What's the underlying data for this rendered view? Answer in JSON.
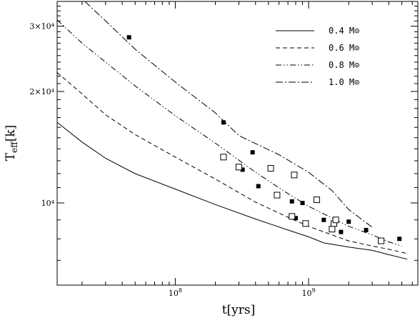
{
  "chart_data": {
    "type": "line",
    "title": "",
    "xlabel": "t[yrs]",
    "ylabel": "T_eff[k]",
    "x_scale": "log",
    "y_scale": "log",
    "xlim": [
      13000000.0,
      6600000000.0
    ],
    "ylim": [
      6000,
      35000
    ],
    "x_ticks": [
      {
        "value": 100000000.0,
        "base": "10",
        "exp": "8"
      },
      {
        "value": 1000000000.0,
        "base": "10",
        "exp": "9"
      }
    ],
    "y_ticks": [
      {
        "value": 10000,
        "label": "10⁴"
      },
      {
        "value": 20000,
        "label": "2×10⁴"
      },
      {
        "value": 30000,
        "label": "3×10⁴"
      }
    ],
    "legend_position": "top-right",
    "series": [
      {
        "name": "0.4 M⊙",
        "style": "solid",
        "points": [
          [
            13000000.0,
            16500
          ],
          [
            20000000.0,
            14600
          ],
          [
            30000000.0,
            13200
          ],
          [
            50000000.0,
            12000
          ],
          [
            100000000.0,
            10900
          ],
          [
            200000000.0,
            9900
          ],
          [
            400000000.0,
            9050
          ],
          [
            700000000.0,
            8450
          ],
          [
            1000000000.0,
            8100
          ],
          [
            1300000000.0,
            7800
          ],
          [
            2000000000.0,
            7600
          ],
          [
            3000000000.0,
            7450
          ],
          [
            4000000000.0,
            7250
          ],
          [
            5500000000.0,
            7050
          ]
        ]
      },
      {
        "name": "0.6 M⊙",
        "style": "dashed",
        "points": [
          [
            13000000.0,
            22500
          ],
          [
            20000000.0,
            19700
          ],
          [
            30000000.0,
            17300
          ],
          [
            50000000.0,
            15300
          ],
          [
            100000000.0,
            13300
          ],
          [
            200000000.0,
            11600
          ],
          [
            400000000.0,
            10050
          ],
          [
            700000000.0,
            9150
          ],
          [
            1000000000.0,
            8650
          ],
          [
            1500000000.0,
            8200
          ],
          [
            2000000000.0,
            7900
          ],
          [
            3000000000.0,
            7650
          ],
          [
            4000000000.0,
            7500
          ],
          [
            5500000000.0,
            7300
          ]
        ]
      },
      {
        "name": "0.8 M⊙",
        "style": "dash-dot-dot",
        "points": [
          [
            13000000.0,
            31200
          ],
          [
            20000000.0,
            27000
          ],
          [
            30000000.0,
            24000
          ],
          [
            50000000.0,
            20700
          ],
          [
            100000000.0,
            17200
          ],
          [
            200000000.0,
            14500
          ],
          [
            400000000.0,
            12100
          ],
          [
            700000000.0,
            10600
          ],
          [
            1000000000.0,
            9800
          ],
          [
            1500000000.0,
            9100
          ],
          [
            2000000000.0,
            8650
          ],
          [
            3000000000.0,
            8200
          ],
          [
            4000000000.0,
            7850
          ],
          [
            5000000000.0,
            7650
          ]
        ]
      },
      {
        "name": "1.0 M⊙",
        "style": "dash-dot",
        "points": [
          [
            21000000.0,
            35000
          ],
          [
            30000000.0,
            31000
          ],
          [
            50000000.0,
            26000
          ],
          [
            100000000.0,
            21200
          ],
          [
            200000000.0,
            17500
          ],
          [
            300000000.0,
            15200
          ],
          [
            600000000.0,
            13500
          ],
          [
            1000000000.0,
            12100
          ],
          [
            1500000000.0,
            10800
          ],
          [
            2000000000.0,
            9600
          ],
          [
            3000000000.0,
            8600
          ]
        ]
      }
    ],
    "observations": {
      "filled_squares": [
        [
          45000000.0,
          28000
        ],
        [
          230000000.0,
          16500
        ],
        [
          320000000.0,
          12300
        ],
        [
          380000000.0,
          13700
        ],
        [
          420000000.0,
          11100
        ],
        [
          750000000.0,
          10100
        ],
        [
          800000000.0,
          9100
        ],
        [
          900000000.0,
          10000
        ],
        [
          1300000000.0,
          9000
        ],
        [
          1750000000.0,
          8350
        ],
        [
          2000000000.0,
          8900
        ],
        [
          2700000000.0,
          8450
        ],
        [
          4800000000.0,
          8000
        ]
      ],
      "open_squares": [
        [
          230000000.0,
          13300
        ],
        [
          300000000.0,
          12500
        ],
        [
          520000000.0,
          12400
        ],
        [
          580000000.0,
          10500
        ],
        [
          750000000.0,
          9200
        ],
        [
          780000000.0,
          11900
        ],
        [
          950000000.0,
          8800
        ],
        [
          1150000000.0,
          10200
        ],
        [
          1500000000.0,
          8500
        ],
        [
          1550000000.0,
          8800
        ],
        [
          1600000000.0,
          9000
        ],
        [
          3500000000.0,
          7900
        ]
      ]
    }
  }
}
